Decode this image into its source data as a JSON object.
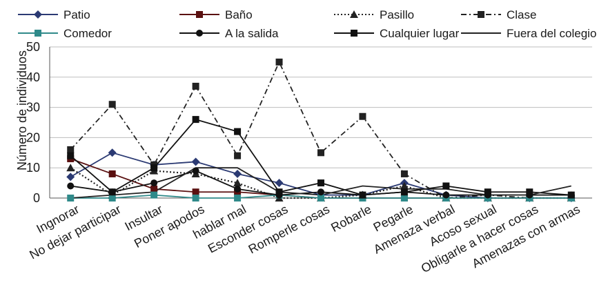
{
  "chart_data": {
    "type": "line",
    "title": "",
    "xlabel": "",
    "ylabel": "Número de individuos",
    "ylim": [
      0,
      50
    ],
    "yticks": [
      0,
      10,
      20,
      30,
      40,
      50
    ],
    "grid": true,
    "legend_position": "top",
    "categories": [
      "Ingnorar",
      "No dejar participar",
      "Insultar",
      "Poner apodos",
      "hablar mal",
      "Esconder cosas",
      "Romperle cosas",
      "Robarle",
      "Pegarle",
      "Amenaza verbal",
      "Acoso sexual",
      "Obligarle a hacer cosas",
      "Amenazas con armas"
    ],
    "series": [
      {
        "name": "Patio",
        "color": "#2b3a73",
        "marker": "diamond",
        "dash": "solid",
        "values": [
          7,
          15,
          11,
          12,
          8,
          5,
          1,
          1,
          5,
          1,
          0,
          0,
          0
        ]
      },
      {
        "name": "Baño",
        "color": "#5a1010",
        "marker": "square",
        "dash": "solid",
        "values": [
          13,
          8,
          3,
          2,
          2,
          1,
          0,
          0,
          0,
          0,
          0,
          0,
          0
        ]
      },
      {
        "name": "Pasillo",
        "color": "#222222",
        "marker": "triangle",
        "dash": "dotted",
        "values": [
          10,
          1,
          9,
          8,
          5,
          0,
          0,
          1,
          4,
          0,
          0,
          0,
          0
        ]
      },
      {
        "name": "Clase",
        "color": "#222222",
        "marker": "square",
        "dash": "dashdot",
        "values": [
          16,
          31,
          11,
          37,
          14,
          45,
          15,
          27,
          8,
          0,
          1,
          0,
          0
        ]
      },
      {
        "name": "Comedor",
        "color": "#2f8a8a",
        "marker": "square",
        "dash": "solid",
        "values": [
          0,
          0,
          1,
          0,
          0,
          1,
          0,
          0,
          0,
          0,
          0,
          0,
          0
        ]
      },
      {
        "name": "A la salida",
        "color": "#111111",
        "marker": "circle",
        "dash": "solid",
        "values": [
          4,
          2,
          5,
          9,
          3,
          1,
          2,
          1,
          2,
          1,
          1,
          1,
          1
        ]
      },
      {
        "name": "Cualquier lugar",
        "color": "#111111",
        "marker": "square",
        "dash": "solid",
        "values": [
          14,
          2,
          10,
          26,
          22,
          2,
          5,
          1,
          2,
          4,
          2,
          2,
          1
        ]
      },
      {
        "name": "Fuera del colegio",
        "color": "#222222",
        "marker": "none",
        "dash": "solid",
        "values": [
          0,
          1,
          2,
          10,
          10,
          2,
          1,
          4,
          3,
          3,
          1,
          1,
          4
        ]
      }
    ]
  }
}
